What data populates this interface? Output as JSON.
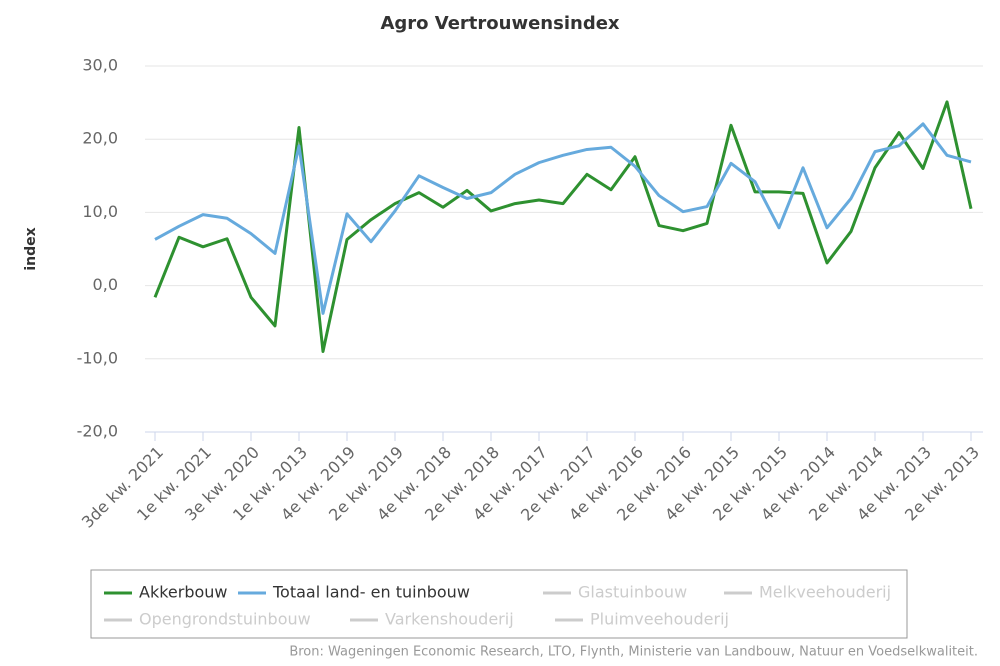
{
  "chart_data": {
    "type": "line",
    "title": "Agro Vertrouwensindex",
    "y_label": "index",
    "source": "Bron: Wageningen Economic Research, LTO, Flynth, Ministerie van Landbouw, Natuur en Voedselkwaliteit.",
    "categories": [
      "3de kw. 2021",
      null,
      "1e kw. 2021",
      null,
      "3e kw. 2020",
      null,
      "1e kw. 2013",
      null,
      "4e kw. 2019",
      null,
      "2e kw. 2019",
      null,
      "4e kw. 2018",
      null,
      "2e kw. 2018",
      null,
      "4e kw. 2017",
      null,
      "2e kw. 2017",
      null,
      "4e kw. 2016",
      null,
      "2e kw. 2016",
      null,
      "4e kw. 2015",
      null,
      "2e kw. 2015",
      null,
      "4e kw. 2014",
      null,
      "2e kw. 2014",
      null,
      "4e kw. 2013",
      null,
      "2e kw. 2013"
    ],
    "series": [
      {
        "name": "Akkerbouw",
        "color": "#2e9130",
        "values": [
          -1.6,
          6.6,
          5.3,
          6.4,
          -1.6,
          -5.5,
          21.6,
          -9.0,
          6.3,
          9.0,
          11.2,
          12.7,
          10.7,
          13.0,
          10.2,
          11.2,
          11.7,
          11.2,
          15.2,
          13.1,
          17.6,
          8.2,
          7.5,
          8.5,
          21.9,
          12.8,
          12.8,
          12.6,
          3.1,
          7.4,
          16.1,
          20.9,
          16.0,
          25.1,
          10.5
        ]
      },
      {
        "name": "Totaal land- en tuinbouw",
        "color": "#66aadd",
        "values": [
          6.3,
          8.1,
          9.7,
          9.2,
          7.1,
          4.4,
          19.1,
          -3.8,
          9.8,
          6.0,
          10.2,
          15.0,
          13.4,
          11.9,
          12.7,
          15.2,
          16.8,
          17.8,
          18.6,
          18.9,
          16.3,
          12.3,
          10.1,
          10.8,
          16.7,
          14.2,
          7.9,
          16.1,
          7.9,
          11.9,
          18.3,
          19.1,
          22.1,
          17.8,
          16.9
        ]
      },
      {
        "name": "Glastuinbouw",
        "color": "#cccccc",
        "visible": false
      },
      {
        "name": "Melkveehouderij",
        "color": "#cccccc",
        "visible": false
      },
      {
        "name": "Opengrondstuinbouw",
        "color": "#cccccc",
        "visible": false
      },
      {
        "name": "Varkenshouderij",
        "color": "#cccccc",
        "visible": false
      },
      {
        "name": "Pluimveehouderij",
        "color": "#cccccc",
        "visible": false
      }
    ],
    "ylim": [
      -20,
      30
    ],
    "yticks": [
      {
        "value": -20,
        "label": "-20,0"
      },
      {
        "value": -10,
        "label": "-10,0"
      },
      {
        "value": 0,
        "label": "0,0"
      },
      {
        "value": 10,
        "label": "10,0"
      },
      {
        "value": 20,
        "label": "20,0"
      },
      {
        "value": 30,
        "label": "30,0"
      }
    ],
    "grid": true
  }
}
